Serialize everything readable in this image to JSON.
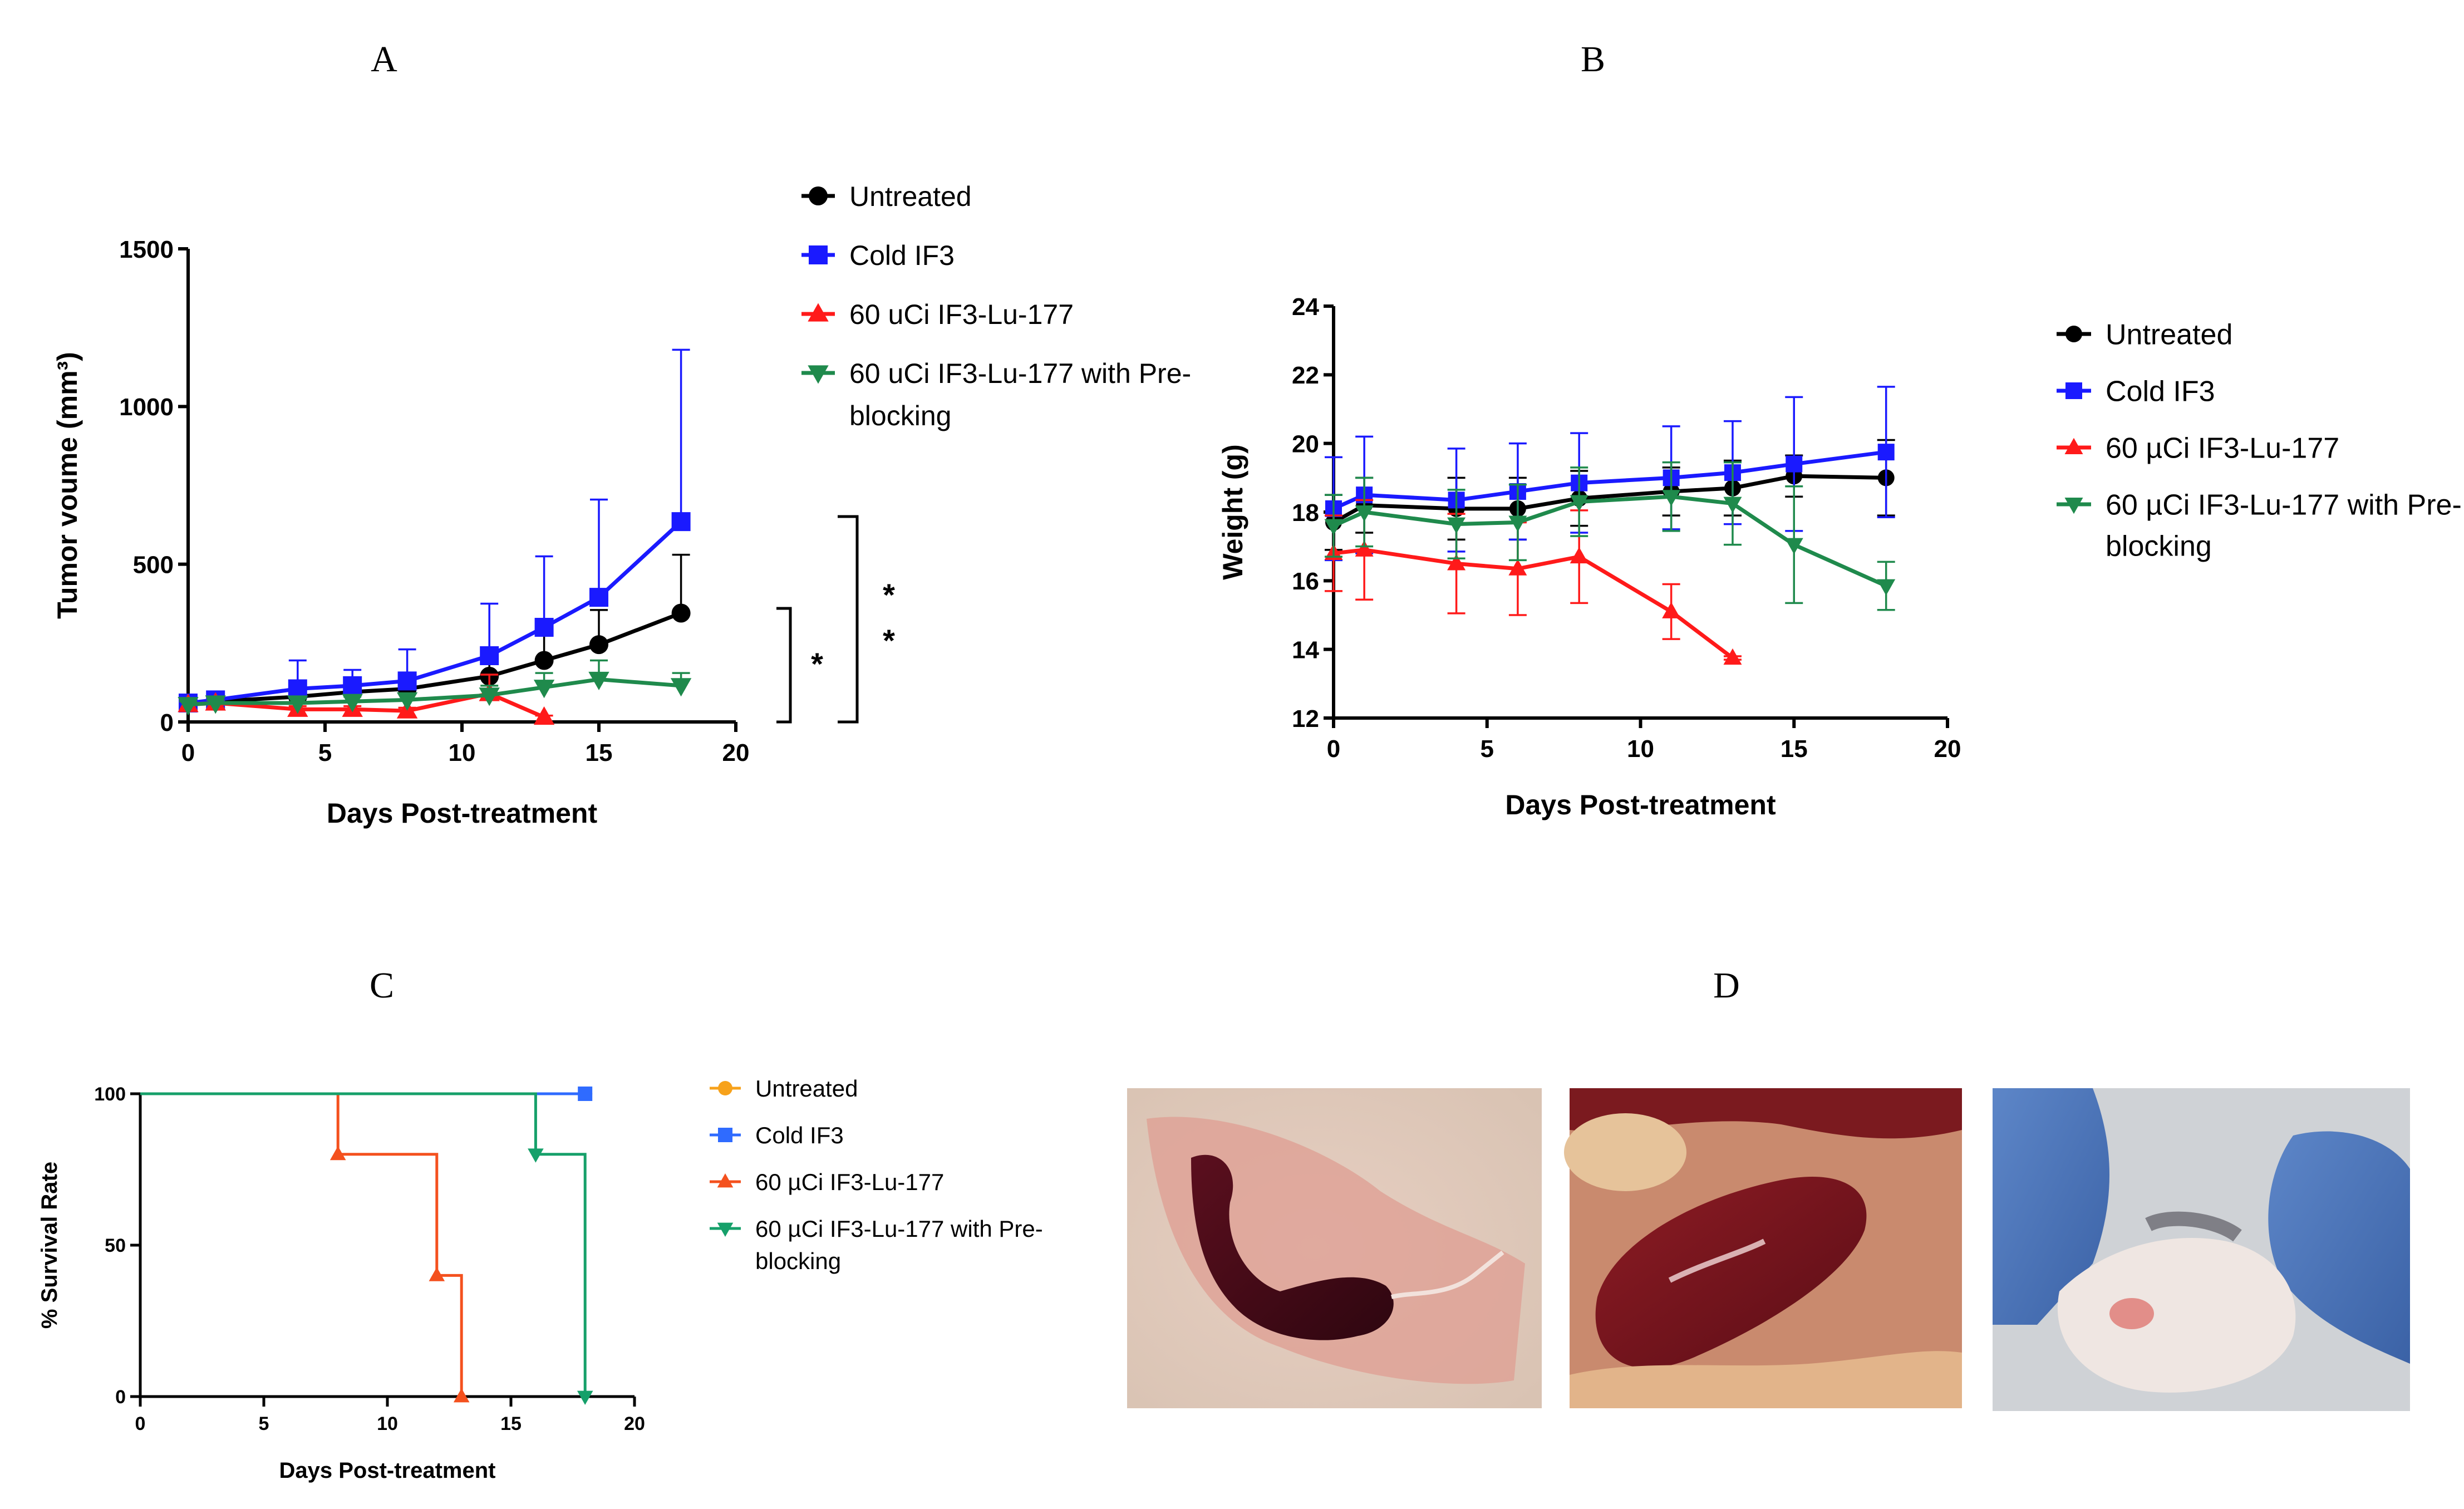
{
  "panels": {
    "A": {
      "letter": "A"
    },
    "B": {
      "letter": "B"
    },
    "C": {
      "letter": "C"
    },
    "D": {
      "letter": "D"
    }
  },
  "significance": {
    "left": "*",
    "right_1": "*",
    "right_2": "*"
  },
  "colors": {
    "untreated": "#000000",
    "cold": "#1a1aff",
    "lu177": "#ff1a1a",
    "preblock": "#1f8a4c",
    "untreated_c": "#f7a21b",
    "cold_c": "#2f6bff",
    "lu177_c": "#f4511e",
    "preblock_c": "#16a06a"
  },
  "chart_data": [
    {
      "id": "A",
      "type": "line",
      "title": "",
      "xlabel": "Days Post-treatment",
      "ylabel": "Tumor voume (mm³)",
      "xlim": [
        0,
        20
      ],
      "ylim": [
        0,
        1500
      ],
      "xticks": [
        "0",
        "5",
        "10",
        "15",
        "20"
      ],
      "yticks": [
        "0",
        "500",
        "1000",
        "1500"
      ],
      "legend": "right",
      "series": [
        {
          "name": "Untreated",
          "marker": "circle",
          "x": [
            0,
            1,
            4,
            6,
            8,
            11,
            13,
            15,
            18
          ],
          "y": [
            60,
            65,
            80,
            95,
            105,
            145,
            195,
            245,
            345
          ],
          "err": [
            15,
            15,
            25,
            30,
            35,
            55,
            80,
            110,
            185
          ]
        },
        {
          "name": "Cold IF3",
          "marker": "square",
          "x": [
            0,
            1,
            4,
            6,
            8,
            11,
            13,
            15,
            18
          ],
          "y": [
            60,
            70,
            105,
            115,
            130,
            210,
            300,
            395,
            635
          ],
          "err": [
            15,
            20,
            90,
            50,
            100,
            165,
            225,
            310,
            545
          ]
        },
        {
          "name": "60 uCi IF3-Lu-177",
          "marker": "triangle-up",
          "x": [
            0,
            1,
            4,
            6,
            8,
            11,
            13
          ],
          "y": [
            55,
            60,
            40,
            40,
            35,
            90,
            15
          ],
          "err": [
            10,
            10,
            10,
            10,
            10,
            60,
            5
          ]
        },
        {
          "name": "60 uCi IF3-Lu-177 with Pre-blocking",
          "marker": "triangle-down",
          "x": [
            0,
            1,
            4,
            6,
            8,
            11,
            13,
            15,
            18
          ],
          "y": [
            55,
            60,
            60,
            65,
            70,
            85,
            110,
            135,
            115
          ],
          "err": [
            10,
            10,
            15,
            15,
            20,
            30,
            45,
            60,
            40
          ]
        }
      ]
    },
    {
      "id": "B",
      "type": "line",
      "title": "",
      "xlabel": "Days Post-treatment",
      "ylabel": "Weight (g)",
      "xlim": [
        0,
        20
      ],
      "ylim": [
        12,
        24
      ],
      "xticks": [
        "0",
        "5",
        "10",
        "15",
        "20"
      ],
      "yticks": [
        "12",
        "14",
        "16",
        "18",
        "20",
        "22",
        "24"
      ],
      "legend": "right",
      "series": [
        {
          "name": "Untreated",
          "marker": "circle",
          "x": [
            0,
            1,
            4,
            6,
            8,
            11,
            13,
            15,
            18
          ],
          "y": [
            17.7,
            18.2,
            18.1,
            18.1,
            18.4,
            18.6,
            18.7,
            19.05,
            19.0
          ],
          "err": [
            0.8,
            0.8,
            0.9,
            0.9,
            0.8,
            0.7,
            0.8,
            0.6,
            1.1
          ]
        },
        {
          "name": "Cold IF3",
          "marker": "square",
          "x": [
            0,
            1,
            4,
            6,
            8,
            11,
            13,
            15,
            18
          ],
          "y": [
            18.1,
            18.5,
            18.35,
            18.6,
            18.85,
            19.0,
            19.15,
            19.4,
            19.75
          ],
          "err": [
            1.5,
            1.7,
            1.5,
            1.4,
            1.45,
            1.5,
            1.5,
            1.95,
            1.9
          ]
        },
        {
          "name": "60 µCi IF3-Lu-177",
          "marker": "triangle-up",
          "x": [
            0,
            1,
            4,
            6,
            8,
            11,
            13
          ],
          "y": [
            16.8,
            16.9,
            16.5,
            16.35,
            16.7,
            15.1,
            13.75
          ],
          "err": [
            1.1,
            1.45,
            1.45,
            1.35,
            1.35,
            0.8,
            0.05
          ]
        },
        {
          "name": "60 µCi IF3-Lu-177 with Pre-blocking",
          "marker": "triangle-down",
          "x": [
            0,
            1,
            4,
            6,
            8,
            11,
            13,
            15,
            18
          ],
          "y": [
            17.6,
            18.0,
            17.65,
            17.7,
            18.3,
            18.45,
            18.25,
            17.05,
            15.85
          ],
          "err": [
            0.9,
            1.0,
            1.0,
            1.1,
            1.0,
            1.0,
            1.2,
            1.7,
            0.7
          ]
        }
      ]
    },
    {
      "id": "C",
      "type": "line",
      "subtype": "step",
      "title": "",
      "xlabel": "Days Post-treatment",
      "ylabel": "% Survival Rate",
      "xlim": [
        0,
        20
      ],
      "ylim": [
        0,
        100
      ],
      "xticks": [
        "0",
        "5",
        "10",
        "15",
        "20"
      ],
      "yticks": [
        "0",
        "50",
        "100"
      ],
      "legend": "right",
      "series": [
        {
          "name": "Untreated",
          "marker": "circle",
          "x": [
            0,
            18
          ],
          "y": [
            100,
            100
          ],
          "marker_x": [
            18
          ],
          "marker_y": [
            100
          ]
        },
        {
          "name": "Cold IF3",
          "marker": "square",
          "x": [
            0,
            18
          ],
          "y": [
            100,
            100
          ],
          "marker_x": [
            18
          ],
          "marker_y": [
            100
          ]
        },
        {
          "name": "60 µCi IF3-Lu-177",
          "marker": "triangle-up",
          "x": [
            0,
            8,
            8,
            12,
            12,
            13,
            13
          ],
          "y": [
            100,
            100,
            80,
            80,
            40,
            40,
            0
          ],
          "marker_x": [
            8,
            12,
            13
          ],
          "marker_y": [
            80,
            40,
            0
          ]
        },
        {
          "name": "60 µCi IF3-Lu-177 with Pre-blocking",
          "marker": "triangle-down",
          "x": [
            0,
            16,
            16,
            18,
            18
          ],
          "y": [
            100,
            100,
            80,
            80,
            0
          ],
          "marker_x": [
            16,
            18
          ],
          "marker_y": [
            80,
            0
          ]
        }
      ]
    }
  ]
}
